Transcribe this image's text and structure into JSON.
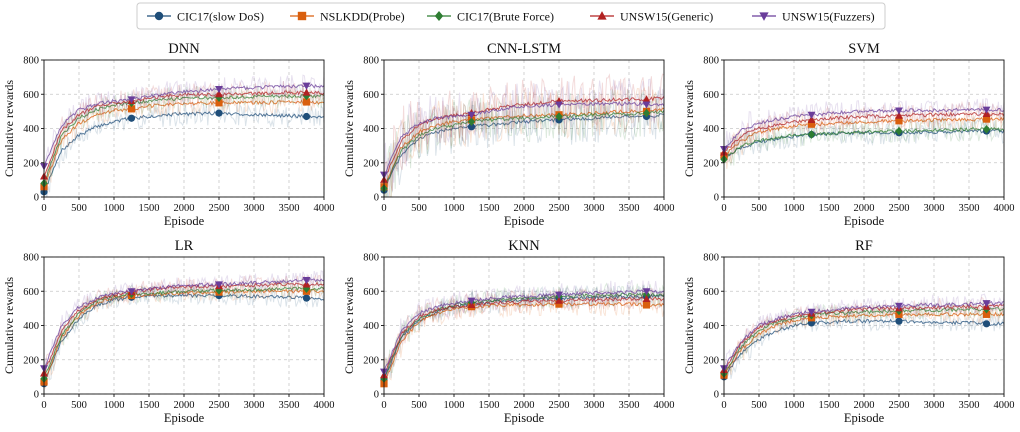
{
  "legend": {
    "placement": "top-center",
    "entries": [
      {
        "label": "CIC17(slow DoS)",
        "color": "#1f4e79",
        "marker": "circle"
      },
      {
        "label": "NSLKDD(Probe)",
        "color": "#d95f0e",
        "marker": "square"
      },
      {
        "label": "CIC17(Brute Force)",
        "color": "#2e7d32",
        "marker": "diamond"
      },
      {
        "label": "UNSW15(Generic)",
        "color": "#b22222",
        "marker": "triangle-up"
      },
      {
        "label": "UNSW15(Fuzzers)",
        "color": "#6a3d9a",
        "marker": "triangle-down"
      }
    ]
  },
  "chart_data": [
    {
      "type": "line",
      "title": "DNN",
      "xlabel": "Episode",
      "ylabel": "Cumulative rewards",
      "xlim": [
        0,
        4000
      ],
      "ylim": [
        0,
        800
      ],
      "grid": true,
      "xticks": [
        0,
        500,
        1000,
        1500,
        2000,
        2500,
        3000,
        3500,
        4000
      ],
      "yticks": [
        0,
        200,
        400,
        600,
        800
      ],
      "x": [
        0,
        250,
        500,
        750,
        1000,
        1250,
        1500,
        1750,
        2000,
        2500,
        3000,
        3500,
        3750,
        4000
      ],
      "series": [
        {
          "name": "CIC17(slow DoS)",
          "values": [
            30,
            270,
            360,
            410,
            440,
            460,
            470,
            480,
            485,
            490,
            480,
            475,
            470,
            470
          ]
        },
        {
          "name": "NSLKDD(Probe)",
          "values": [
            60,
            330,
            430,
            480,
            505,
            515,
            530,
            540,
            545,
            550,
            550,
            555,
            555,
            550
          ]
        },
        {
          "name": "CIC17(Brute Force)",
          "values": [
            80,
            360,
            460,
            510,
            535,
            550,
            560,
            570,
            575,
            580,
            585,
            590,
            590,
            590
          ]
        },
        {
          "name": "UNSW15(Generic)",
          "values": [
            120,
            390,
            480,
            530,
            550,
            560,
            575,
            590,
            595,
            600,
            605,
            610,
            610,
            605
          ]
        },
        {
          "name": "UNSW15(Fuzzers)",
          "values": [
            180,
            420,
            510,
            545,
            560,
            570,
            590,
            605,
            615,
            630,
            640,
            645,
            650,
            645
          ]
        }
      ]
    },
    {
      "type": "line",
      "title": "CNN-LSTM",
      "xlabel": "Episode",
      "ylabel": "Cumulative rewards",
      "xlim": [
        0,
        4000
      ],
      "ylim": [
        0,
        800
      ],
      "grid": true,
      "xticks": [
        0,
        500,
        1000,
        1500,
        2000,
        2500,
        3000,
        3500,
        4000
      ],
      "yticks": [
        0,
        200,
        400,
        600,
        800
      ],
      "x": [
        0,
        250,
        500,
        750,
        1000,
        1250,
        1500,
        1750,
        2000,
        2500,
        3000,
        3500,
        3750,
        4000
      ],
      "series": [
        {
          "name": "CIC17(slow DoS)",
          "values": [
            40,
            250,
            340,
            380,
            400,
            410,
            420,
            430,
            440,
            450,
            460,
            470,
            470,
            480
          ]
        },
        {
          "name": "NSLKDD(Probe)",
          "values": [
            60,
            290,
            380,
            420,
            440,
            450,
            460,
            470,
            475,
            480,
            490,
            500,
            500,
            510
          ]
        },
        {
          "name": "CIC17(Brute Force)",
          "values": [
            50,
            270,
            360,
            400,
            420,
            440,
            450,
            455,
            460,
            470,
            480,
            485,
            490,
            500
          ]
        },
        {
          "name": "UNSW15(Generic)",
          "values": [
            100,
            330,
            420,
            460,
            480,
            490,
            510,
            530,
            540,
            560,
            565,
            570,
            570,
            580
          ]
        },
        {
          "name": "UNSW15(Fuzzers)",
          "values": [
            130,
            350,
            430,
            460,
            470,
            480,
            500,
            520,
            530,
            540,
            545,
            545,
            540,
            540
          ]
        }
      ]
    },
    {
      "type": "line",
      "title": "SVM",
      "xlabel": "Episode",
      "ylabel": "Cumulative rewards",
      "xlim": [
        0,
        4000
      ],
      "ylim": [
        0,
        800
      ],
      "grid": true,
      "xticks": [
        0,
        500,
        1000,
        1500,
        2000,
        2500,
        3000,
        3500,
        4000
      ],
      "yticks": [
        0,
        200,
        400,
        600,
        800
      ],
      "x": [
        0,
        250,
        500,
        750,
        1000,
        1250,
        1500,
        1750,
        2000,
        2500,
        3000,
        3500,
        3750,
        4000
      ],
      "series": [
        {
          "name": "CIC17(slow DoS)",
          "values": [
            230,
            290,
            320,
            340,
            355,
            365,
            370,
            375,
            375,
            375,
            380,
            385,
            385,
            385
          ]
        },
        {
          "name": "NSLKDD(Probe)",
          "values": [
            240,
            330,
            380,
            400,
            415,
            425,
            430,
            435,
            440,
            445,
            450,
            450,
            455,
            455
          ]
        },
        {
          "name": "CIC17(Brute Force)",
          "values": [
            220,
            300,
            330,
            345,
            360,
            365,
            370,
            375,
            380,
            385,
            390,
            395,
            395,
            395
          ]
        },
        {
          "name": "UNSW15(Generic)",
          "values": [
            260,
            360,
            400,
            420,
            440,
            450,
            460,
            465,
            470,
            475,
            480,
            485,
            485,
            480
          ]
        },
        {
          "name": "UNSW15(Fuzzers)",
          "values": [
            280,
            390,
            430,
            455,
            470,
            480,
            490,
            495,
            500,
            505,
            505,
            510,
            510,
            510
          ]
        }
      ]
    },
    {
      "type": "line",
      "title": "LR",
      "xlabel": "Episode",
      "ylabel": "Cumulative rewards",
      "xlim": [
        0,
        4000
      ],
      "ylim": [
        0,
        800
      ],
      "grid": true,
      "xticks": [
        0,
        500,
        1000,
        1500,
        2000,
        2500,
        3000,
        3500,
        4000
      ],
      "yticks": [
        0,
        200,
        400,
        600,
        800
      ],
      "x": [
        0,
        250,
        500,
        750,
        1000,
        1250,
        1500,
        1750,
        2000,
        2500,
        3000,
        3500,
        3750,
        4000
      ],
      "series": [
        {
          "name": "CIC17(slow DoS)",
          "values": [
            60,
            310,
            440,
            520,
            550,
            565,
            570,
            575,
            575,
            575,
            570,
            565,
            560,
            555
          ]
        },
        {
          "name": "NSLKDD(Probe)",
          "values": [
            70,
            330,
            460,
            530,
            560,
            575,
            580,
            585,
            590,
            595,
            600,
            600,
            600,
            600
          ]
        },
        {
          "name": "CIC17(Brute Force)",
          "values": [
            90,
            340,
            470,
            540,
            570,
            585,
            590,
            595,
            600,
            605,
            610,
            615,
            615,
            615
          ]
        },
        {
          "name": "UNSW15(Generic)",
          "values": [
            120,
            370,
            490,
            550,
            580,
            595,
            610,
            620,
            625,
            630,
            635,
            640,
            640,
            645
          ]
        },
        {
          "name": "UNSW15(Fuzzers)",
          "values": [
            150,
            400,
            510,
            560,
            590,
            600,
            615,
            625,
            635,
            640,
            650,
            660,
            665,
            665
          ]
        }
      ]
    },
    {
      "type": "line",
      "title": "KNN",
      "xlabel": "Episode",
      "ylabel": "Cumulative rewards",
      "xlim": [
        0,
        4000
      ],
      "ylim": [
        0,
        800
      ],
      "grid": true,
      "xticks": [
        0,
        500,
        1000,
        1500,
        2000,
        2500,
        3000,
        3500,
        4000
      ],
      "yticks": [
        0,
        200,
        400,
        600,
        800
      ],
      "x": [
        0,
        250,
        500,
        750,
        1000,
        1250,
        1500,
        1750,
        2000,
        2500,
        3000,
        3500,
        3750,
        4000
      ],
      "series": [
        {
          "name": "CIC17(slow DoS)",
          "values": [
            80,
            330,
            430,
            480,
            510,
            525,
            535,
            545,
            550,
            560,
            565,
            570,
            570,
            570
          ]
        },
        {
          "name": "NSLKDD(Probe)",
          "values": [
            60,
            310,
            420,
            470,
            500,
            510,
            515,
            520,
            520,
            525,
            525,
            525,
            520,
            520
          ]
        },
        {
          "name": "CIC17(Brute Force)",
          "values": [
            90,
            340,
            440,
            490,
            520,
            535,
            545,
            555,
            560,
            570,
            575,
            580,
            580,
            580
          ]
        },
        {
          "name": "UNSW15(Generic)",
          "values": [
            110,
            350,
            450,
            490,
            510,
            520,
            530,
            535,
            540,
            545,
            550,
            555,
            555,
            555
          ]
        },
        {
          "name": "UNSW15(Fuzzers)",
          "values": [
            130,
            370,
            470,
            510,
            530,
            545,
            555,
            565,
            570,
            580,
            590,
            595,
            600,
            595
          ]
        }
      ]
    },
    {
      "type": "line",
      "title": "RF",
      "xlabel": "Episode",
      "ylabel": "Cumulative rewards",
      "xlim": [
        0,
        4000
      ],
      "ylim": [
        0,
        800
      ],
      "grid": true,
      "xticks": [
        0,
        500,
        1000,
        1500,
        2000,
        2500,
        3000,
        3500,
        4000
      ],
      "yticks": [
        0,
        200,
        400,
        600,
        800
      ],
      "x": [
        0,
        250,
        500,
        750,
        1000,
        1250,
        1500,
        1750,
        2000,
        2500,
        3000,
        3500,
        3750,
        4000
      ],
      "series": [
        {
          "name": "CIC17(slow DoS)",
          "values": [
            100,
            240,
            320,
            370,
            400,
            415,
            420,
            425,
            425,
            425,
            420,
            415,
            410,
            410
          ]
        },
        {
          "name": "NSLKDD(Probe)",
          "values": [
            110,
            260,
            350,
            400,
            430,
            445,
            450,
            455,
            460,
            465,
            465,
            465,
            465,
            465
          ]
        },
        {
          "name": "CIC17(Brute Force)",
          "values": [
            120,
            280,
            370,
            420,
            445,
            460,
            470,
            475,
            480,
            485,
            490,
            495,
            495,
            495
          ]
        },
        {
          "name": "UNSW15(Generic)",
          "values": [
            140,
            300,
            390,
            430,
            455,
            470,
            480,
            490,
            495,
            500,
            505,
            510,
            510,
            515
          ]
        },
        {
          "name": "UNSW15(Fuzzers)",
          "values": [
            150,
            310,
            400,
            440,
            465,
            480,
            490,
            500,
            505,
            515,
            520,
            525,
            530,
            530
          ]
        }
      ]
    }
  ]
}
